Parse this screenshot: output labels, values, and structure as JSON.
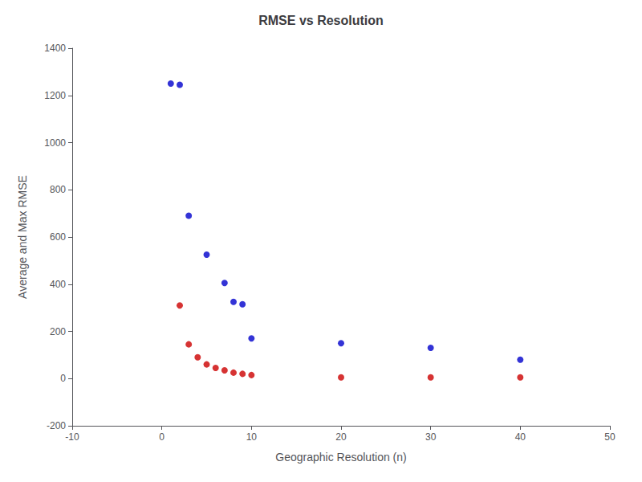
{
  "chart_data": {
    "type": "scatter",
    "title": "RMSE vs Resolution",
    "xlabel": "Geographic Resolution (n)",
    "ylabel": "Average and Max RMSE",
    "xlim": [
      -10,
      50
    ],
    "ylim": [
      -200,
      1400
    ],
    "xticks": [
      -10,
      0,
      10,
      20,
      30,
      40,
      50
    ],
    "yticks": [
      -200,
      0,
      200,
      400,
      600,
      800,
      1000,
      1200,
      1400
    ],
    "grid": false,
    "series": [
      {
        "color": "#0000cc",
        "x": [
          1,
          2,
          3,
          5,
          7,
          8,
          9,
          10,
          20,
          30,
          40
        ],
        "values": [
          1250,
          1245,
          690,
          525,
          405,
          325,
          315,
          170,
          150,
          130,
          80
        ]
      },
      {
        "color": "#cc0000",
        "x": [
          2,
          3,
          4,
          5,
          6,
          7,
          8,
          9,
          10,
          20,
          30,
          40
        ],
        "values": [
          310,
          145,
          90,
          60,
          45,
          35,
          25,
          20,
          15,
          5,
          5,
          5
        ]
      }
    ]
  }
}
